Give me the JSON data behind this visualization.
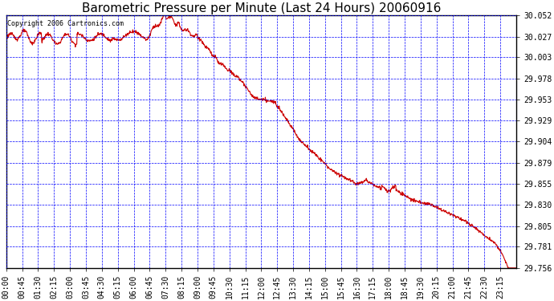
{
  "title": "Barometric Pressure per Minute (Last 24 Hours) 20060916",
  "copyright": "Copyright 2006 Cartronics.com",
  "background_color": "#ffffff",
  "plot_bg_color": "#ffffff",
  "grid_color": "#0000ff",
  "line_color": "#cc0000",
  "x_tick_labels": [
    "00:00",
    "00:45",
    "01:30",
    "02:15",
    "03:00",
    "03:45",
    "04:30",
    "05:15",
    "06:00",
    "06:45",
    "07:30",
    "08:15",
    "09:00",
    "09:45",
    "10:30",
    "11:15",
    "12:00",
    "12:45",
    "13:30",
    "14:15",
    "15:00",
    "15:45",
    "16:30",
    "17:15",
    "18:00",
    "18:45",
    "19:30",
    "20:15",
    "21:00",
    "21:45",
    "22:30",
    "23:15"
  ],
  "y_ticks": [
    29.756,
    29.781,
    29.805,
    29.83,
    29.855,
    29.879,
    29.904,
    29.929,
    29.953,
    29.978,
    30.003,
    30.027,
    30.052
  ],
  "ylim": [
    29.756,
    30.052
  ],
  "title_fontsize": 11,
  "axis_fontsize": 7,
  "copyright_fontsize": 6,
  "spine_color": "#000000",
  "line_width": 0.8
}
